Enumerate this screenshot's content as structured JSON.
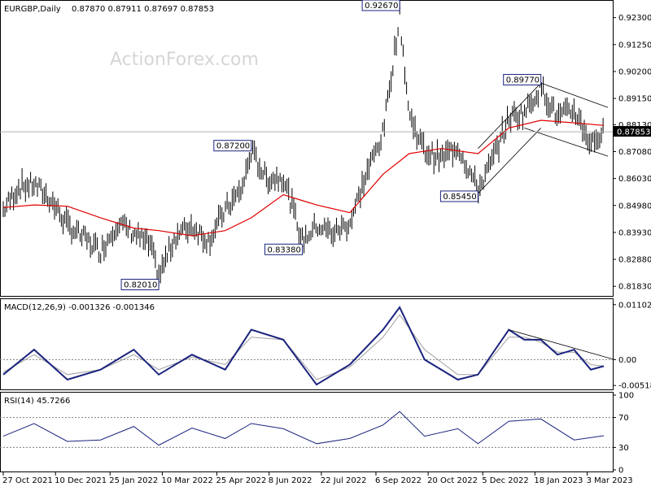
{
  "header": {
    "symbol_timeframe": "EURGBP,Daily",
    "ohlc": "0.87870 0.87911 0.87697 0.87853"
  },
  "watermark": "ActionForex.com",
  "colors": {
    "background": "#ffffff",
    "price_line": "#000000",
    "ma_line": "#e00000",
    "macd_line": "#1a237e",
    "signal_line": "#a0a0a0",
    "rsi_line": "#1a237e",
    "annotation_border": "#1a237e",
    "grid_dotted": "#808080"
  },
  "chart_data": [
    {
      "type": "bar",
      "panel": "price",
      "title": "EURGBP,Daily",
      "ohlc_text": "0.87870 0.87911 0.87697 0.87853",
      "ylim": [
        0.8152,
        0.9286
      ],
      "y_ticks": [
        "0.92300",
        "0.91250",
        "0.90200",
        "0.89150",
        "0.88130",
        "0.87080",
        "0.86030",
        "0.84980",
        "0.83930",
        "0.82880",
        "0.81830"
      ],
      "current_price": "0.87853",
      "moving_average": "red line",
      "annotations": [
        {
          "label": "0.92670",
          "x": "2022-09-26",
          "y": 0.9267
        },
        {
          "label": "0.89770",
          "x": "2023-01-23",
          "y": 0.8977
        },
        {
          "label": "0.87200",
          "x": "2022-05-24",
          "y": 0.872
        },
        {
          "label": "0.85450",
          "x": "2022-12-01",
          "y": 0.8545
        },
        {
          "label": "0.83380",
          "x": "2022-07-06",
          "y": 0.8338
        },
        {
          "label": "0.82010",
          "x": "2022-03-07",
          "y": 0.8201
        }
      ],
      "series": [
        {
          "x": [
            "2021-10-27",
            "2021-11-09",
            "2021-11-22",
            "2021-12-06",
            "2021-12-20",
            "2022-01-03",
            "2022-01-17",
            "2022-01-31",
            "2022-02-14",
            "2022-02-28",
            "2022-03-07",
            "2022-03-21",
            "2022-04-04",
            "2022-04-18",
            "2022-05-02",
            "2022-05-16",
            "2022-05-24",
            "2022-06-06",
            "2022-06-20",
            "2022-07-06",
            "2022-07-18",
            "2022-08-01",
            "2022-08-15",
            "2022-08-29",
            "2022-09-12",
            "2022-09-26",
            "2022-10-04",
            "2022-10-17",
            "2022-10-31",
            "2022-11-14",
            "2022-12-01",
            "2022-12-12",
            "2022-12-27",
            "2023-01-09",
            "2023-01-23",
            "2023-02-06",
            "2023-02-20",
            "2023-03-06",
            "2023-03-17"
          ],
          "values": [
            0.848,
            0.857,
            0.858,
            0.852,
            0.842,
            0.837,
            0.832,
            0.843,
            0.839,
            0.834,
            0.822,
            0.838,
            0.842,
            0.836,
            0.848,
            0.856,
            0.871,
            0.86,
            0.861,
            0.836,
            0.842,
            0.839,
            0.843,
            0.862,
            0.878,
            0.924,
            0.885,
            0.871,
            0.868,
            0.873,
            0.856,
            0.866,
            0.884,
            0.886,
            0.896,
            0.884,
            0.887,
            0.874,
            0.8785
          ]
        },
        {
          "name": "",
          "x": [
            "2021-10-27",
            "2021-11-22",
            "2021-12-20",
            "2022-01-17",
            "2022-02-14",
            "2022-03-07",
            "2022-04-04",
            "2022-05-02",
            "2022-05-24",
            "2022-06-20",
            "2022-07-18",
            "2022-08-15",
            "2022-09-12",
            "2022-10-04",
            "2022-10-31",
            "2022-12-01",
            "2022-12-27",
            "2023-01-23",
            "2023-02-20",
            "2023-03-17"
          ],
          "values": [
            0.849,
            0.85,
            0.8495,
            0.845,
            0.841,
            0.84,
            0.838,
            0.84,
            0.845,
            0.854,
            0.85,
            0.847,
            0.862,
            0.87,
            0.872,
            0.87,
            0.88,
            0.883,
            0.882,
            0.881
          ]
        }
      ]
    },
    {
      "type": "line",
      "panel": "macd",
      "label": "MACD(12,26,9) -0.001326 -0.001346",
      "y_ticks": [
        "0.011023",
        "0.00",
        "-0.005182"
      ],
      "ylim": [
        -0.0058,
        0.0118
      ],
      "series": [
        {
          "x": [
            "2021-10-27",
            "2021-11-22",
            "2021-12-20",
            "2022-01-17",
            "2022-02-14",
            "2022-03-07",
            "2022-04-04",
            "2022-05-02",
            "2022-05-24",
            "2022-06-20",
            "2022-07-18",
            "2022-08-15",
            "2022-09-12",
            "2022-09-26",
            "2022-10-17",
            "2022-11-14",
            "2022-12-01",
            "2022-12-27",
            "2023-01-09",
            "2023-01-23",
            "2023-02-06",
            "2023-02-20",
            "2023-03-06",
            "2023-03-17"
          ],
          "values": [
            -0.003,
            0.002,
            -0.004,
            -0.002,
            0.002,
            -0.003,
            0.001,
            -0.002,
            0.006,
            0.004,
            -0.005,
            -0.001,
            0.006,
            0.0105,
            0.0,
            -0.004,
            -0.003,
            0.006,
            0.004,
            0.004,
            0.001,
            0.002,
            -0.002,
            -0.0013
          ]
        },
        {
          "x": [
            "2021-10-27",
            "2021-11-22",
            "2021-12-20",
            "2022-01-17",
            "2022-02-14",
            "2022-03-07",
            "2022-04-04",
            "2022-05-02",
            "2022-05-24",
            "2022-06-20",
            "2022-07-18",
            "2022-08-15",
            "2022-09-12",
            "2022-09-26",
            "2022-10-17",
            "2022-11-14",
            "2022-12-01",
            "2022-12-27",
            "2023-01-09",
            "2023-01-23",
            "2023-02-06",
            "2023-02-20",
            "2023-03-06",
            "2023-03-17"
          ],
          "values": [
            -0.0025,
            0.001,
            -0.003,
            -0.002,
            0.001,
            -0.002,
            0.0005,
            -0.001,
            0.0045,
            0.004,
            -0.004,
            -0.0015,
            0.0045,
            0.009,
            0.002,
            -0.003,
            -0.003,
            0.0045,
            0.0045,
            0.0035,
            0.0015,
            0.0015,
            -0.001,
            -0.0013
          ]
        }
      ]
    },
    {
      "type": "line",
      "panel": "rsi",
      "label": "RSI(14) 45.7266",
      "y_ticks": [
        "100",
        "70",
        "30",
        "0"
      ],
      "ylim": [
        0,
        100
      ],
      "series": [
        {
          "x": [
            "2021-10-27",
            "2021-11-22",
            "2021-12-20",
            "2022-01-17",
            "2022-02-14",
            "2022-03-07",
            "2022-04-04",
            "2022-05-02",
            "2022-05-24",
            "2022-06-20",
            "2022-07-18",
            "2022-08-15",
            "2022-09-12",
            "2022-09-26",
            "2022-10-17",
            "2022-11-14",
            "2022-12-01",
            "2022-12-27",
            "2023-01-23",
            "2023-02-20",
            "2023-03-17"
          ],
          "values": [
            45,
            62,
            38,
            40,
            58,
            33,
            56,
            42,
            62,
            55,
            35,
            42,
            60,
            78,
            45,
            55,
            35,
            65,
            68,
            40,
            45.7
          ]
        }
      ]
    }
  ],
  "x_axis_labels": [
    "27 Oct 2021",
    "10 Dec 2021",
    "25 Jan 2022",
    "10 Mar 2022",
    "25 Apr 2022",
    "8 Jun 2022",
    "22 Jul 2022",
    "6 Sep 2022",
    "20 Oct 2022",
    "5 Dec 2022",
    "18 Jan 2023",
    "3 Mar 2023"
  ]
}
